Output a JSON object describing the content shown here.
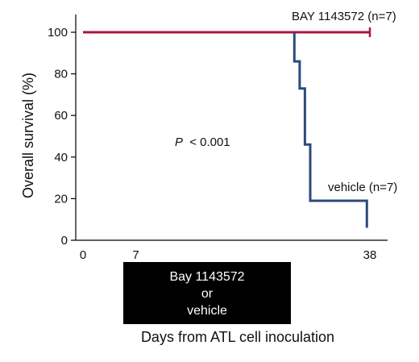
{
  "chart_data": {
    "type": "line",
    "step": true,
    "xlabel": "Days from ATL cell inoculation",
    "ylabel": "Overall survival (%)",
    "xlim": [
      0,
      38
    ],
    "ylim": [
      0,
      100
    ],
    "x_ticks": [
      0,
      7,
      38
    ],
    "y_ticks": [
      0,
      20,
      40,
      60,
      80,
      100
    ],
    "grid": false,
    "series": [
      {
        "name": "BAY 1143572 (n=7)",
        "color": "#a8193a",
        "censor_marker": true,
        "points": [
          [
            0,
            100
          ],
          [
            38,
            100
          ]
        ]
      },
      {
        "name": "vehicle (n=7)",
        "color": "#2d4a7c",
        "points": [
          [
            28,
            100
          ],
          [
            28,
            86
          ],
          [
            28.7,
            86
          ],
          [
            28.7,
            73
          ],
          [
            29.4,
            73
          ],
          [
            29.4,
            46
          ],
          [
            30.1,
            46
          ],
          [
            30.1,
            19
          ],
          [
            37.6,
            19
          ],
          [
            37.6,
            6
          ]
        ]
      }
    ],
    "annotations": {
      "p_prefix": "P",
      "p_value": "< 0.001"
    },
    "treatment_box": {
      "line1": "Bay 1143572",
      "line2": "or",
      "line3": "vehicle",
      "color": "#000000"
    }
  }
}
